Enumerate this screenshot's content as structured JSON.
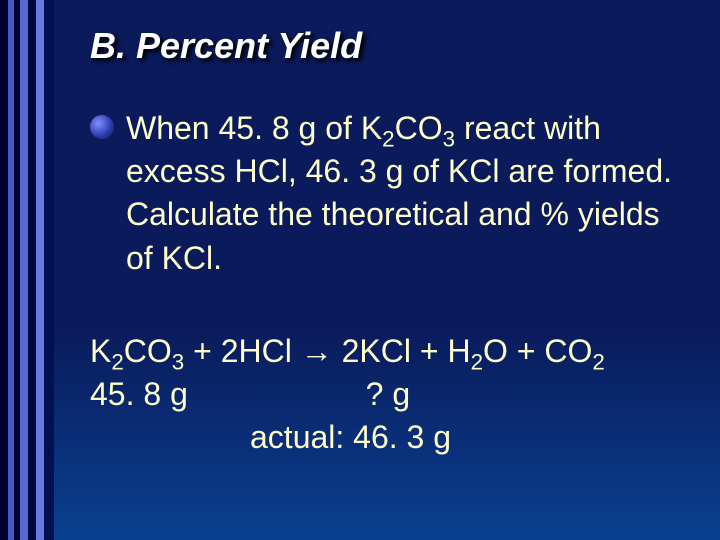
{
  "slide": {
    "background_gradient_top": "#0a1a5a",
    "background_gradient_bottom": "#0a4090",
    "accent_colors": [
      "#000030",
      "#4858c0",
      "#000038",
      "#5868d0",
      "#000840",
      "#6878e0",
      "#001050"
    ],
    "title": {
      "text": "B. Percent Yield",
      "color": "#ffffff",
      "fontsize_pt": 36,
      "font_weight": "bold",
      "font_style": "italic",
      "shadow_color": "#000000"
    },
    "body_color": "#ffffcc",
    "body_fontsize_pt": 32,
    "bullet": {
      "text_part1": "When 45. 8 g of K",
      "sub1": "2",
      "text_part2": "CO",
      "sub2": "3",
      "text_part3": " react with excess HCl, 46. 3 g of KCl are formed.  Calculate the theoretical and % yields of KCl.",
      "bullet_gradient_inner": "#8090ff",
      "bullet_gradient_outer": "#0a1a5a"
    },
    "equation": {
      "l1_a": "K",
      "l1_s1": "2",
      "l1_b": "CO",
      "l1_s2": "3",
      "l1_c": " + 2HCl ",
      "l1_arrow": "→",
      "l1_d": " 2KCl + H",
      "l1_s3": "2",
      "l1_e": "O + CO",
      "l1_s4": "2",
      "line2_mass_left": "45. 8 g",
      "line2_mass_right": "? g",
      "line3": "actual: 46. 3 g"
    }
  }
}
